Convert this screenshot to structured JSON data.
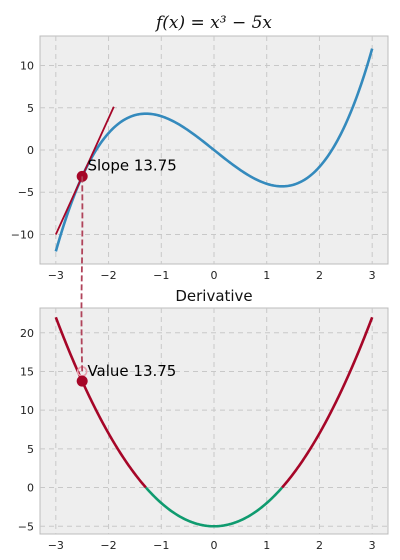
{
  "chart_data": [
    {
      "type": "line",
      "title": "f(x) = x³ − 5x",
      "xlim": [
        -3.3,
        3.3
      ],
      "ylim": [
        -13.5,
        13.5
      ],
      "xticks": [
        -3,
        -2,
        -1,
        0,
        1,
        2,
        3
      ],
      "yticks": [
        -10,
        -5,
        0,
        5,
        10
      ],
      "xtick_labels": [
        "−3",
        "−2",
        "−1",
        "0",
        "1",
        "2",
        "3"
      ],
      "ytick_labels": [
        "−10",
        "−5",
        "0",
        "5",
        "10"
      ],
      "grid": true,
      "series": [
        {
          "name": "",
          "function": "x^3 - 5x",
          "x_range": [
            -3,
            3
          ],
          "color": "#348abd"
        }
      ],
      "tangent": {
        "x": -2.5,
        "y": -3.125,
        "slope": 13.75,
        "x_range": [
          -3.0,
          -1.9
        ],
        "color": "#a60628"
      },
      "point": {
        "x": -2.5,
        "y": -3.125,
        "color": "#a60628"
      },
      "annotation": {
        "text": "Slope 13.75",
        "x": -2.4,
        "y": -2.4
      }
    },
    {
      "type": "line",
      "title": "Derivative",
      "xlim": [
        -3.3,
        3.3
      ],
      "ylim": [
        -6.0,
        23.2
      ],
      "xticks": [
        -3,
        -2,
        -1,
        0,
        1,
        2,
        3
      ],
      "yticks": [
        -5,
        0,
        5,
        10,
        15,
        20
      ],
      "xtick_labels": [
        "−3",
        "−2",
        "−1",
        "0",
        "1",
        "2",
        "3"
      ],
      "ytick_labels": [
        "−5",
        "0",
        "5",
        "10",
        "15",
        "20"
      ],
      "grid": true,
      "series": [
        {
          "name": "",
          "function": "3x^2 - 5",
          "x_range": [
            -3,
            3
          ],
          "color_positive": "#a60628",
          "color_negative": "#0f9b6f"
        }
      ],
      "point": {
        "x": -2.5,
        "y": 13.75,
        "color": "#a60628"
      },
      "ghost_point": {
        "x": -2.5,
        "y": 15.0,
        "color": "#e8a0ad"
      },
      "annotation": {
        "text": "Value 13.75",
        "x": -2.4,
        "y": 14.4
      }
    }
  ],
  "connector": {
    "color": "#b0435a",
    "from_top": [
      -2.5,
      -3.125
    ],
    "to_bottom": [
      -2.5,
      15.0
    ]
  }
}
